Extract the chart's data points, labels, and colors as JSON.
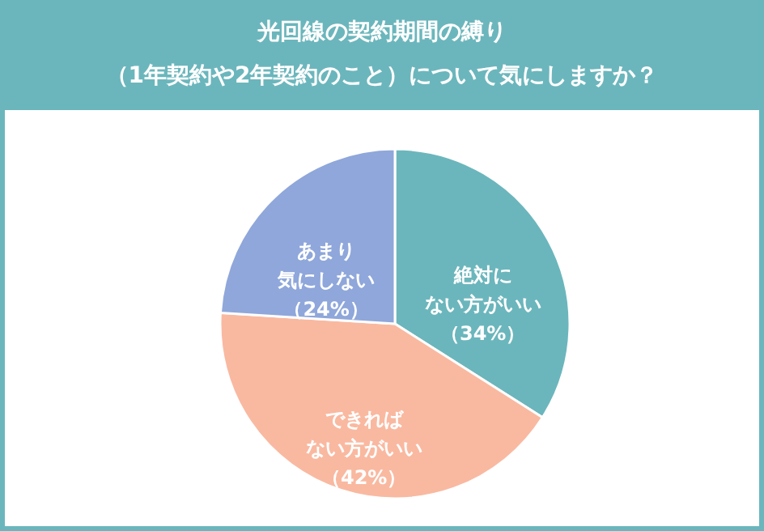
{
  "chart_data": {
    "type": "pie",
    "title": "光回線の契約期間の縛り",
    "subtitle": "（1年契約や2年契約のこと）について気にしますか？",
    "categories": [
      "絶対にない方がいい",
      "できればない方がいい",
      "あまり気にしない"
    ],
    "values": [
      34,
      42,
      24
    ],
    "value_labels": [
      "（34%）",
      "（42%）",
      "（24%）"
    ],
    "colors": [
      "#6bb6bc",
      "#f9b9a0",
      "#8fa7da"
    ]
  }
}
